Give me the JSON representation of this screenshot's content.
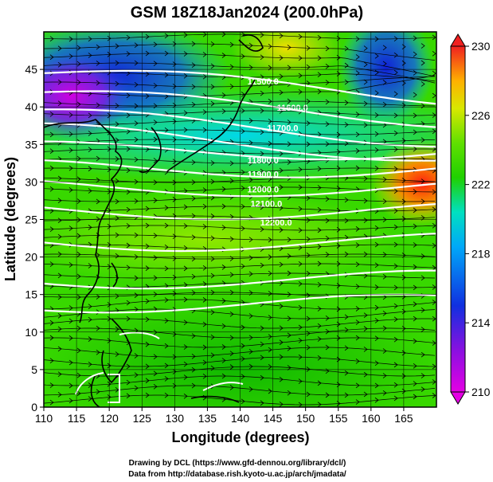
{
  "title": "GSM 18Z18Jan2024 (200.0hPa)",
  "xlabel": "Longitude (degrees)",
  "ylabel": "Latitude (degrees)",
  "credits": {
    "line1": "Drawing by DCL (https://www.gfd-dennou.org/library/dcl/)",
    "line2": "Data from http://database.rish.kyoto-u.ac.jp/arch/jmadata/"
  },
  "map": {
    "lon_range": [
      110,
      170
    ],
    "lat_range": [
      0,
      50
    ],
    "lon_ticks": [
      "110",
      "115",
      "120",
      "125",
      "130",
      "135",
      "140",
      "145",
      "150",
      "155",
      "160",
      "165"
    ],
    "lat_ticks": [
      "0",
      "5",
      "10",
      "15",
      "20",
      "25",
      "30",
      "35",
      "40",
      "45"
    ],
    "contour_labels": [
      {
        "text": "11500.0",
        "lon": 143.5,
        "lat": 43.0
      },
      {
        "text": "11600.0",
        "lon": 148.0,
        "lat": 39.5
      },
      {
        "text": "11700.0",
        "lon": 146.5,
        "lat": 36.8
      },
      {
        "text": "11800.0",
        "lon": 143.5,
        "lat": 32.5
      },
      {
        "text": "11900.0",
        "lon": 143.5,
        "lat": 30.6
      },
      {
        "text": "12000.0",
        "lon": 143.5,
        "lat": 28.6
      },
      {
        "text": "12100.0",
        "lon": 144.0,
        "lat": 26.7
      },
      {
        "text": "12200.0",
        "lon": 145.5,
        "lat": 24.2
      }
    ]
  },
  "colorbar": {
    "min": 210,
    "max": 230,
    "ticks": [
      "230",
      "226",
      "222",
      "218",
      "214",
      "210"
    ],
    "colors": [
      "#e400e4",
      "#1030e0",
      "#00c8f0",
      "#20d000",
      "#78e800",
      "#ffd000",
      "#f02020"
    ]
  }
}
